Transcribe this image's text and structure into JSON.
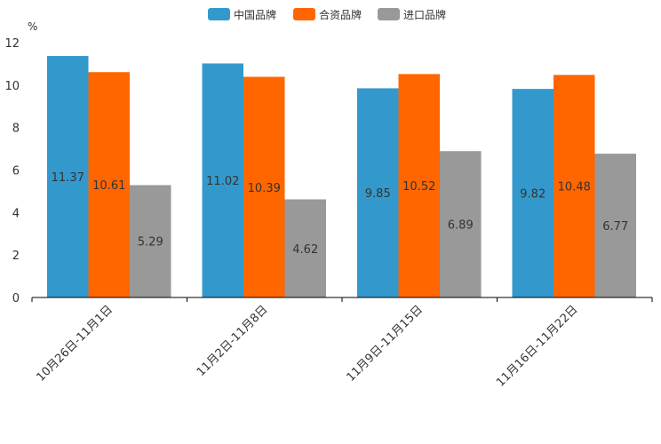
{
  "chart_data": {
    "type": "bar",
    "title": "",
    "xlabel": "",
    "ylabel": "%",
    "ylim": [
      0,
      12
    ],
    "yticks": [
      0,
      2,
      4,
      6,
      8,
      10,
      12
    ],
    "legend_position": "top-center",
    "categories": [
      "10月26日-11月1日",
      "11月2日-11月8日",
      "11月9日-11月15日",
      "11月16日-11月22日"
    ],
    "series": [
      {
        "name": "中国品牌",
        "color": "#3399cc",
        "values": [
          11.37,
          11.02,
          9.85,
          9.82
        ]
      },
      {
        "name": "合资品牌",
        "color": "#ff6600",
        "values": [
          10.61,
          10.39,
          10.52,
          10.48
        ]
      },
      {
        "name": "进口品牌",
        "color": "#999999",
        "values": [
          5.29,
          4.62,
          6.89,
          6.77
        ]
      }
    ]
  }
}
